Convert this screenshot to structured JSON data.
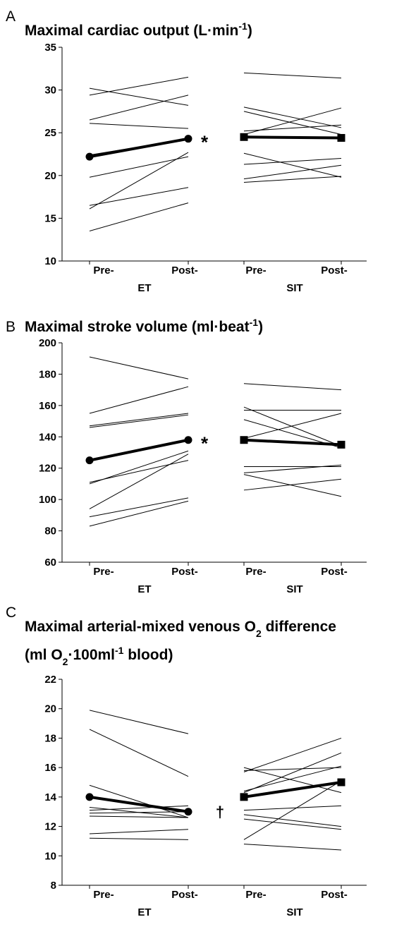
{
  "chart_data": [
    {
      "type": "line",
      "panel": "A",
      "title_lines": [
        [
          {
            "text": "Maximal cardiac output (L·min"
          },
          {
            "text": "-1",
            "shift": "super"
          },
          {
            "text": ")"
          }
        ]
      ],
      "categories": [
        "Pre-",
        "Post-",
        "Pre-",
        "Post-"
      ],
      "ylim": [
        10,
        35
      ],
      "yticks": [
        10,
        15,
        20,
        25,
        30,
        35
      ],
      "groups": [
        {
          "label": "ET",
          "marker": "circle",
          "mean": [
            22.2,
            24.3
          ],
          "lines": [
            [
              30.2,
              28.2
            ],
            [
              29.4,
              31.5
            ],
            [
              26.5,
              29.4
            ],
            [
              26.1,
              25.5
            ],
            [
              22.4,
              24.3
            ],
            [
              19.8,
              22.2
            ],
            [
              16.5,
              18.6
            ],
            [
              16.1,
              22.7
            ],
            [
              13.5,
              16.8
            ]
          ]
        },
        {
          "label": "SIT",
          "marker": "square",
          "mean": [
            24.5,
            24.4
          ],
          "lines": [
            [
              32.0,
              31.4
            ],
            [
              28.0,
              25.6
            ],
            [
              27.5,
              24.8
            ],
            [
              24.8,
              27.9
            ],
            [
              25.2,
              25.9
            ],
            [
              22.6,
              19.8
            ],
            [
              21.3,
              22.0
            ],
            [
              19.6,
              21.2
            ],
            [
              19.2,
              19.9
            ]
          ]
        }
      ],
      "annotation": "*"
    },
    {
      "type": "line",
      "panel": "B",
      "title_lines": [
        [
          {
            "text": "Maximal stroke volume (ml·beat"
          },
          {
            "text": "-1",
            "shift": "super"
          },
          {
            "text": ")"
          }
        ]
      ],
      "categories": [
        "Pre-",
        "Post-",
        "Pre-",
        "Post-"
      ],
      "ylim": [
        60,
        200
      ],
      "yticks": [
        60,
        80,
        100,
        120,
        140,
        160,
        180,
        200
      ],
      "groups": [
        {
          "label": "ET",
          "marker": "circle",
          "mean": [
            125,
            138
          ],
          "lines": [
            [
              191,
              177
            ],
            [
              155,
              172
            ],
            [
              147,
              155
            ],
            [
              146,
              154
            ],
            [
              111,
              125
            ],
            [
              110,
              131
            ],
            [
              94,
              129
            ],
            [
              89,
              101
            ],
            [
              83,
              99
            ]
          ]
        },
        {
          "label": "SIT",
          "marker": "square",
          "mean": [
            138,
            135
          ],
          "lines": [
            [
              174,
              170
            ],
            [
              159,
              134
            ],
            [
              157,
              157
            ],
            [
              151,
              133
            ],
            [
              139,
              155
            ],
            [
              121,
              121
            ],
            [
              117,
              122
            ],
            [
              116,
              102
            ],
            [
              106,
              113
            ]
          ]
        }
      ],
      "annotation": "*"
    },
    {
      "type": "line",
      "panel": "C",
      "title_lines": [
        [
          {
            "text": "Maximal arterial-mixed venous O"
          },
          {
            "text": "2",
            "shift": "sub"
          },
          {
            "text": " difference"
          }
        ],
        [
          {
            "text": "(ml O"
          },
          {
            "text": "2",
            "shift": "sub"
          },
          {
            "text": "·100ml"
          },
          {
            "text": "-1",
            "shift": "super"
          },
          {
            "text": " blood)"
          }
        ]
      ],
      "categories": [
        "Pre-",
        "Post-",
        "Pre-",
        "Post-"
      ],
      "ylim": [
        8,
        22
      ],
      "yticks": [
        8,
        10,
        12,
        14,
        16,
        18,
        20,
        22
      ],
      "groups": [
        {
          "label": "ET",
          "marker": "circle",
          "mean": [
            14,
            13
          ],
          "lines": [
            [
              19.9,
              18.3
            ],
            [
              18.6,
              15.4
            ],
            [
              14.8,
              12.6
            ],
            [
              13.3,
              12.6
            ],
            [
              13.1,
              13.4
            ],
            [
              12.9,
              13.0
            ],
            [
              12.7,
              12.6
            ],
            [
              11.5,
              11.8
            ],
            [
              11.2,
              11.1
            ]
          ]
        },
        {
          "label": "SIT",
          "marker": "square",
          "mean": [
            14,
            15
          ],
          "lines": [
            [
              16.0,
              14.3
            ],
            [
              15.7,
              18.0
            ],
            [
              14.4,
              16.1
            ],
            [
              14.3,
              17.0
            ],
            [
              13.1,
              13.4
            ],
            [
              12.8,
              12.0
            ],
            [
              12.5,
              11.8
            ],
            [
              11.1,
              15.1
            ],
            [
              10.8,
              10.4
            ],
            [
              15.8,
              16.0
            ]
          ]
        }
      ],
      "annotation": "†"
    }
  ]
}
